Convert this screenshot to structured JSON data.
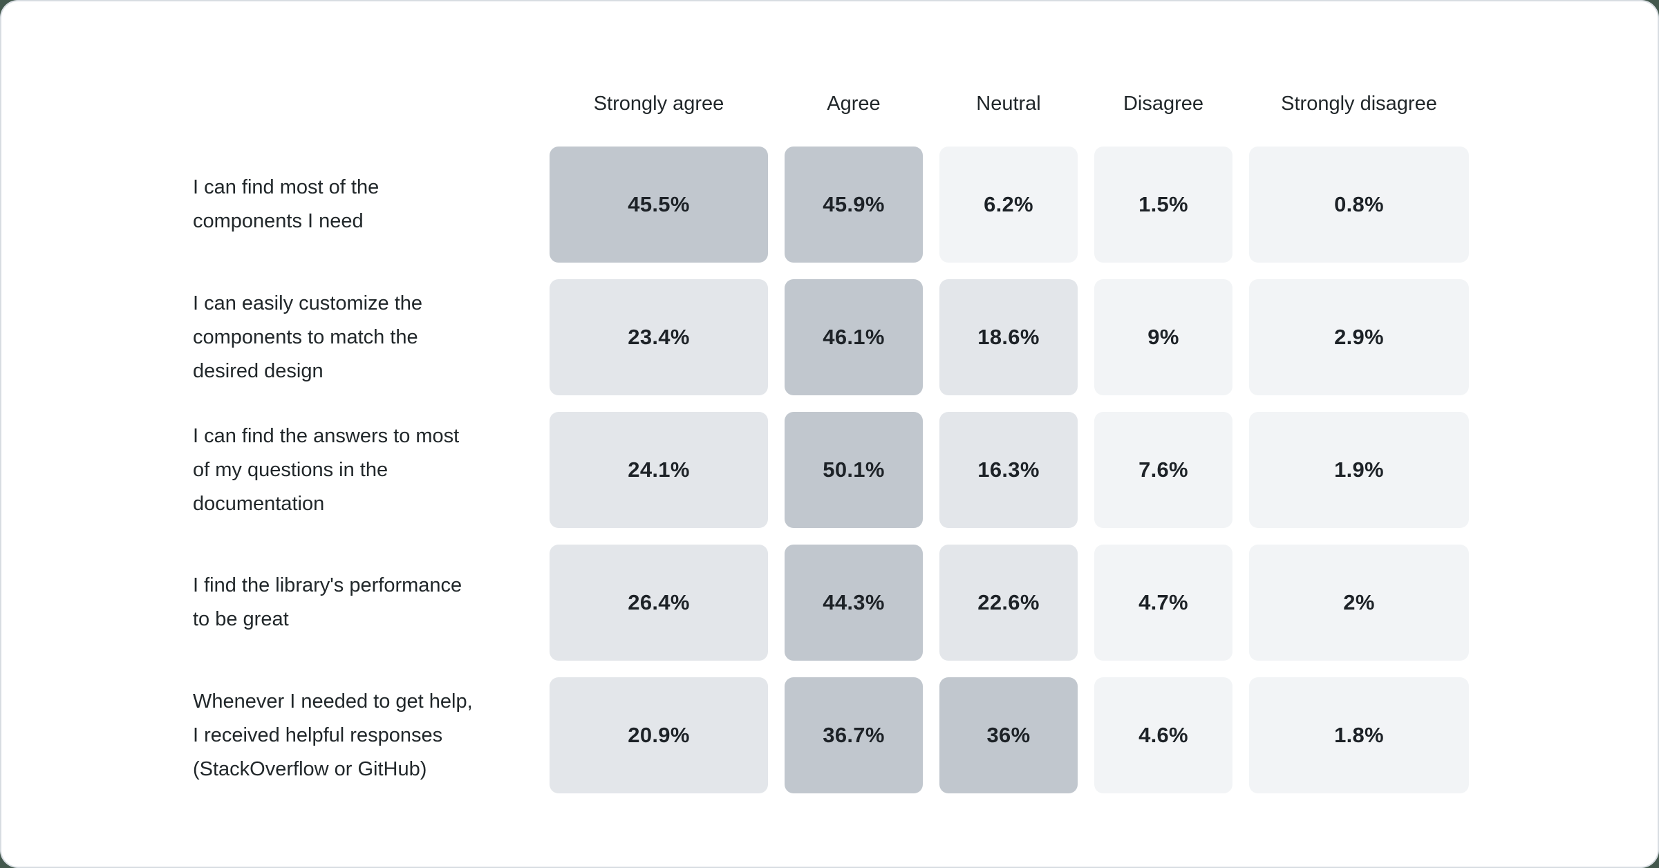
{
  "chart_data": {
    "type": "heatmap",
    "title": "",
    "columns": [
      "Strongly agree",
      "Agree",
      "Neutral",
      "Disagree",
      "Strongly disagree"
    ],
    "rows": [
      {
        "label": "I can find most of the components I need",
        "label_lines": "I can find most of the\ncomponents I need",
        "values": [
          45.5,
          45.9,
          6.2,
          1.5,
          0.8
        ]
      },
      {
        "label": "I can easily customize the components to match the desired design",
        "label_lines": "I can easily customize the\ncomponents to match the\ndesired design",
        "values": [
          23.4,
          46.1,
          18.6,
          9,
          2.9
        ]
      },
      {
        "label": "I can find the answers to most of my questions in the documentation",
        "label_lines": "I can find the answers to most\nof my questions in the\ndocumentation",
        "values": [
          24.1,
          50.1,
          16.3,
          7.6,
          1.9
        ]
      },
      {
        "label": "I find the library's performance to be great",
        "label_lines": "I find the library's performance\nto be great",
        "values": [
          26.4,
          44.3,
          22.6,
          4.7,
          2
        ]
      },
      {
        "label": "Whenever I needed to get help, I received helpful responses (StackOverflow or GitHub)",
        "label_lines": "Whenever I needed to get help,\nI received helpful responses\n(StackOverflow or GitHub)",
        "values": [
          20.9,
          36.7,
          36,
          4.6,
          1.8
        ]
      }
    ],
    "unit": "%",
    "legend_position": "none",
    "grid": false,
    "heat_colors": {
      "high": "#c1c7ce",
      "mid": "#e3e6ea",
      "low": "#f2f4f6"
    },
    "heat_thresholds": {
      "high_min": 30,
      "mid_min": 12
    },
    "text_color": "#21272a",
    "card_border_color": "#d8dde2",
    "page_background_color": "#43584d"
  }
}
